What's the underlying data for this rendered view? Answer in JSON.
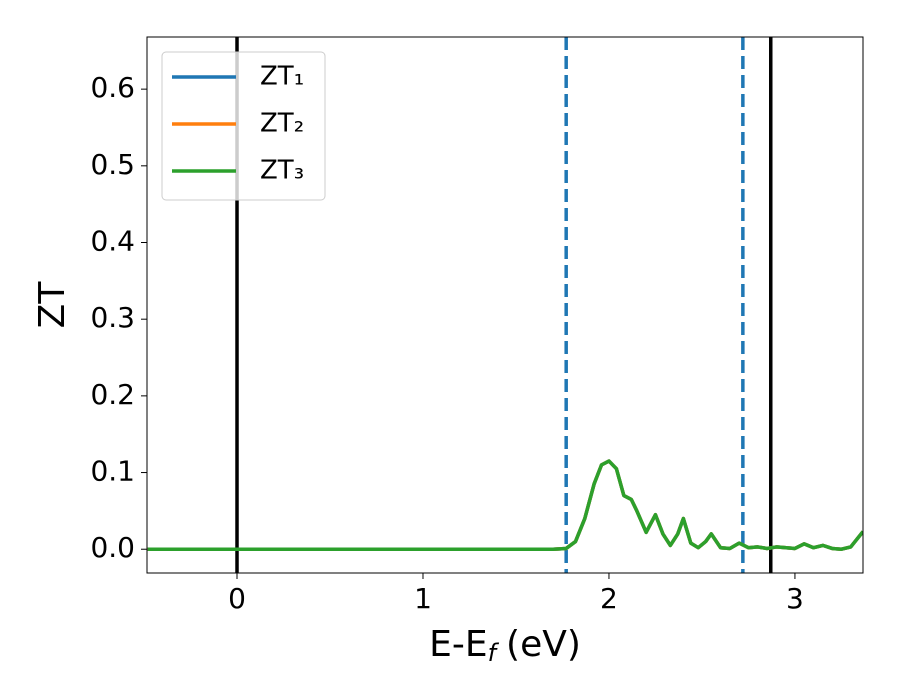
{
  "chart_data": {
    "type": "line",
    "xlabel": [
      "E-E",
      "f",
      "(eV)"
    ],
    "ylabel": "ZT",
    "x": [
      -0.48,
      1.7,
      1.77,
      1.82,
      1.87,
      1.92,
      1.96,
      2.0,
      2.04,
      2.08,
      2.12,
      2.15,
      2.2,
      2.25,
      2.29,
      2.33,
      2.37,
      2.4,
      2.44,
      2.48,
      2.52,
      2.55,
      2.6,
      2.65,
      2.7,
      2.75,
      2.8,
      2.85,
      2.9,
      3.0,
      3.05,
      3.1,
      3.15,
      3.2,
      3.25,
      3.3,
      3.366
    ],
    "series": [
      {
        "name": "ZT₁",
        "color": "#1f77b4",
        "values": [
          0,
          0,
          0.001,
          0.01,
          0.04,
          0.085,
          0.11,
          0.115,
          0.105,
          0.07,
          0.065,
          0.05,
          0.022,
          0.045,
          0.02,
          0.005,
          0.02,
          0.04,
          0.008,
          0.002,
          0.01,
          0.02,
          0.002,
          0.001,
          0.008,
          0.002,
          0.003,
          0.001,
          0.003,
          0.001,
          0.007,
          0.002,
          0.005,
          0.001,
          0,
          0.003,
          0.023
        ]
      },
      {
        "name": "ZT₂",
        "color": "#ff7f0e",
        "values": [
          0,
          0,
          0.001,
          0.01,
          0.04,
          0.085,
          0.11,
          0.115,
          0.105,
          0.07,
          0.065,
          0.05,
          0.022,
          0.045,
          0.02,
          0.005,
          0.02,
          0.04,
          0.008,
          0.002,
          0.01,
          0.02,
          0.002,
          0.001,
          0.008,
          0.002,
          0.003,
          0.001,
          0.003,
          0.001,
          0.007,
          0.002,
          0.005,
          0.001,
          0,
          0.003,
          0.023
        ]
      },
      {
        "name": "ZT₃",
        "color": "#2ca02c",
        "values": [
          0,
          0,
          0.001,
          0.01,
          0.04,
          0.085,
          0.11,
          0.115,
          0.105,
          0.07,
          0.065,
          0.05,
          0.022,
          0.045,
          0.02,
          0.005,
          0.02,
          0.04,
          0.008,
          0.002,
          0.01,
          0.02,
          0.002,
          0.001,
          0.008,
          0.002,
          0.003,
          0.001,
          0.003,
          0.001,
          0.007,
          0.002,
          0.005,
          0.001,
          0,
          0.003,
          0.023
        ]
      }
    ],
    "vlines": [
      {
        "x": 0,
        "color": "#000000",
        "style": "solid"
      },
      {
        "x": 2.87,
        "color": "#000000",
        "style": "solid"
      },
      {
        "x": 1.77,
        "color": "#1f77b4",
        "style": "dashed"
      },
      {
        "x": 2.72,
        "color": "#1f77b4",
        "style": "dashed"
      }
    ],
    "xlim": [
      -0.484,
      3.366
    ],
    "ylim": [
      -0.031,
      0.668
    ],
    "xticks": [
      0,
      1,
      2,
      3
    ],
    "yticks": [
      {
        "value": 0,
        "label": "0.0"
      },
      0.1,
      0.2,
      0.3,
      0.4,
      0.5,
      0.6
    ],
    "legend": "upper left"
  }
}
